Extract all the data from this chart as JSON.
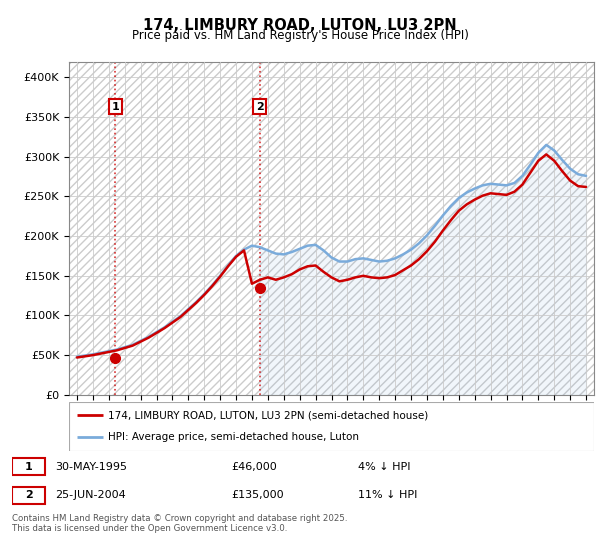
{
  "title": "174, LIMBURY ROAD, LUTON, LU3 2PN",
  "subtitle": "Price paid vs. HM Land Registry's House Price Index (HPI)",
  "yticks": [
    0,
    50000,
    100000,
    150000,
    200000,
    250000,
    300000,
    350000,
    400000
  ],
  "ytick_labels": [
    "£0",
    "£50K",
    "£100K",
    "£150K",
    "£200K",
    "£250K",
    "£300K",
    "£350K",
    "£400K"
  ],
  "xlim_start": 1992.5,
  "xlim_end": 2025.5,
  "ylim": [
    0,
    420000
  ],
  "legend_entry1": "174, LIMBURY ROAD, LUTON, LU3 2PN (semi-detached house)",
  "legend_entry2": "HPI: Average price, semi-detached house, Luton",
  "table_row1": [
    "1",
    "30-MAY-1995",
    "£46,000",
    "4% ↓ HPI"
  ],
  "table_row2": [
    "2",
    "25-JUN-2004",
    "£135,000",
    "11% ↓ HPI"
  ],
  "footer": "Contains HM Land Registry data © Crown copyright and database right 2025.\nThis data is licensed under the Open Government Licence v3.0.",
  "sale1_x": 1995.41,
  "sale1_y": 46000,
  "sale2_x": 2004.48,
  "sale2_y": 135000,
  "hpi_color": "#7aabdb",
  "price_color": "#cc0000",
  "hpi_years": [
    1993,
    1993.5,
    1994,
    1994.5,
    1995,
    1995.5,
    1996,
    1996.5,
    1997,
    1997.5,
    1998,
    1998.5,
    1999,
    1999.5,
    2000,
    2000.5,
    2001,
    2001.5,
    2002,
    2002.5,
    2003,
    2003.5,
    2004,
    2004.5,
    2005,
    2005.5,
    2006,
    2006.5,
    2007,
    2007.5,
    2008,
    2008.5,
    2009,
    2009.5,
    2010,
    2010.5,
    2011,
    2011.5,
    2012,
    2012.5,
    2013,
    2013.5,
    2014,
    2014.5,
    2015,
    2015.5,
    2016,
    2016.5,
    2017,
    2017.5,
    2018,
    2018.5,
    2019,
    2019.5,
    2020,
    2020.5,
    2021,
    2021.5,
    2022,
    2022.5,
    2023,
    2023.5,
    2024,
    2024.5,
    2025
  ],
  "hpi_values": [
    48000,
    49500,
    51000,
    53000,
    55000,
    57000,
    60000,
    63000,
    68000,
    73000,
    79000,
    85000,
    92000,
    99000,
    108000,
    117000,
    127000,
    138000,
    150000,
    163000,
    175000,
    183000,
    188000,
    186000,
    182000,
    178000,
    177000,
    180000,
    184000,
    188000,
    189000,
    182000,
    173000,
    168000,
    168000,
    171000,
    172000,
    170000,
    168000,
    169000,
    172000,
    177000,
    183000,
    191000,
    201000,
    213000,
    226000,
    238000,
    248000,
    255000,
    260000,
    264000,
    266000,
    265000,
    264000,
    267000,
    276000,
    290000,
    305000,
    315000,
    308000,
    296000,
    285000,
    278000,
    276000
  ],
  "price_years": [
    1993,
    1993.5,
    1994,
    1994.5,
    1995,
    1995.5,
    1996,
    1996.5,
    1997,
    1997.5,
    1998,
    1998.5,
    1999,
    1999.5,
    2000,
    2000.5,
    2001,
    2001.5,
    2002,
    2002.5,
    2003,
    2003.5,
    2004,
    2004.5,
    2005,
    2005.5,
    2006,
    2006.5,
    2007,
    2007.5,
    2008,
    2008.5,
    2009,
    2009.5,
    2010,
    2010.5,
    2011,
    2011.5,
    2012,
    2012.5,
    2013,
    2013.5,
    2014,
    2014.5,
    2015,
    2015.5,
    2016,
    2016.5,
    2017,
    2017.5,
    2018,
    2018.5,
    2019,
    2019.5,
    2020,
    2020.5,
    2021,
    2021.5,
    2022,
    2022.5,
    2023,
    2023.5,
    2024,
    2024.5,
    2025
  ],
  "price_values": [
    47000,
    48500,
    50000,
    52000,
    54000,
    56000,
    59000,
    62000,
    67000,
    72000,
    78000,
    84000,
    91000,
    98000,
    107000,
    116000,
    126000,
    137000,
    149000,
    162000,
    174000,
    182000,
    140000,
    145000,
    148000,
    145000,
    148000,
    152000,
    158000,
    162000,
    163000,
    155000,
    148000,
    143000,
    145000,
    148000,
    150000,
    148000,
    147000,
    148000,
    151000,
    157000,
    163000,
    171000,
    181000,
    193000,
    207000,
    220000,
    232000,
    240000,
    246000,
    251000,
    254000,
    253000,
    252000,
    256000,
    265000,
    280000,
    295000,
    303000,
    295000,
    282000,
    270000,
    263000,
    262000
  ]
}
